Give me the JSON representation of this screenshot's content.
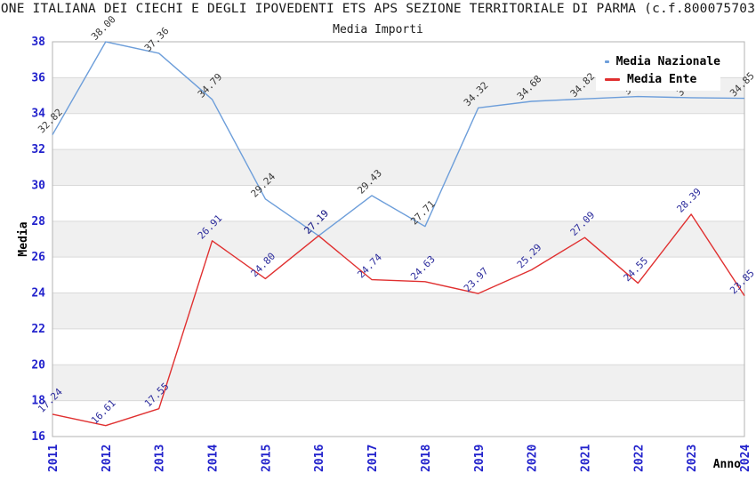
{
  "header": {
    "title": "ONE ITALIANA DEI CIECHI E DEGLI IPOVEDENTI ETS APS SEZIONE TERRITORIALE DI PARMA (c.f.800075703",
    "subtitle": "Media Importi"
  },
  "axes": {
    "y_title": "Media",
    "x_title": "Anno"
  },
  "legend": [
    {
      "label": "Media Nazionale",
      "color": "#6d9eda"
    },
    {
      "label": "Media Ente",
      "color": "#e03030"
    }
  ],
  "chart_data": {
    "type": "line",
    "title": "Media Importi",
    "xlabel": "Anno",
    "ylabel": "Media",
    "categories": [
      "2011",
      "2012",
      "2013",
      "2014",
      "2015",
      "2016",
      "2017",
      "2018",
      "2019",
      "2020",
      "2021",
      "2022",
      "2023",
      "2024"
    ],
    "series": [
      {
        "name": "Media Nazionale",
        "color": "#6d9eda",
        "label_color": "#3a3a3a",
        "values": [
          32.82,
          38.0,
          37.36,
          34.79,
          29.24,
          27.19,
          29.43,
          27.71,
          34.32,
          34.68,
          34.82,
          34.95,
          34.88,
          34.85
        ]
      },
      {
        "name": "Media Ente",
        "color": "#e03030",
        "label_color": "#2c2c9c",
        "values": [
          17.24,
          16.61,
          17.55,
          26.91,
          24.8,
          27.19,
          24.74,
          24.63,
          23.97,
          25.29,
          27.09,
          24.55,
          28.39,
          23.85
        ]
      }
    ],
    "ylim": [
      16,
      38
    ],
    "ytick_step": 2,
    "grid": "horizontal gridlines with alternating gray bands",
    "legend_position": "top-right",
    "tick_label_color": "#2222cc",
    "band_gray": "#f0f0f0",
    "gridline_color": "#d9d9d9",
    "plot_border_color": "#b3b3b3"
  }
}
